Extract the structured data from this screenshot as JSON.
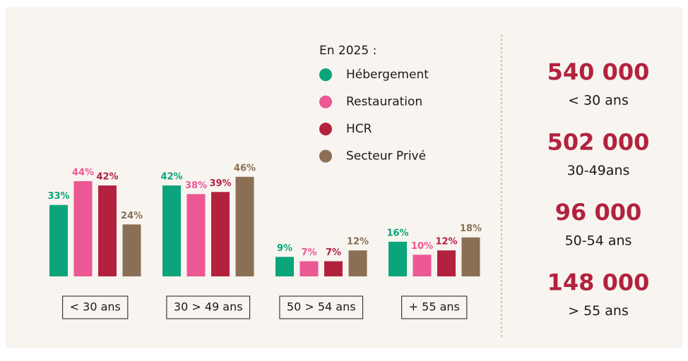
{
  "chart_data": {
    "type": "bar",
    "legend_title": "En 2025 :",
    "categories": [
      "< 30 ans",
      "30 > 49 ans",
      "50 > 54 ans",
      "+ 55 ans"
    ],
    "series": [
      {
        "name": "Hébergement",
        "color": "#0ba47b",
        "values": [
          33,
          42,
          9,
          16
        ],
        "value_labels": [
          "33%",
          "42%",
          "9%",
          "16%"
        ]
      },
      {
        "name": "Restauration",
        "color": "#ec5894",
        "values": [
          44,
          38,
          7,
          10
        ],
        "value_labels": [
          "44%",
          "38%",
          "7%",
          "10%"
        ]
      },
      {
        "name": "HCR",
        "color": "#b2223f",
        "values": [
          42,
          39,
          7,
          12
        ],
        "value_labels": [
          "42%",
          "39%",
          "7%",
          "12%"
        ]
      },
      {
        "name": "Secteur Privé",
        "color": "#8b6f54",
        "values": [
          24,
          46,
          12,
          18
        ],
        "value_labels": [
          "24%",
          "46%",
          "12%",
          "18%"
        ]
      }
    ]
  },
  "stats": [
    {
      "value": "540 000",
      "label": "< 30 ans"
    },
    {
      "value": "502 000",
      "label": "30-49ans"
    },
    {
      "value": "96 000",
      "label": "50-54 ans"
    },
    {
      "value": "148 000",
      "label": "> 55 ans"
    }
  ]
}
